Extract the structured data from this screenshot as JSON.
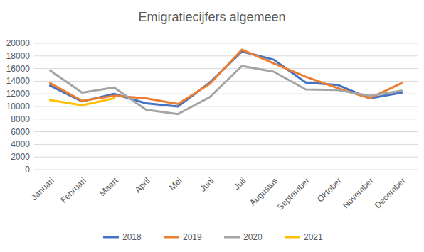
{
  "chart_data": {
    "type": "line",
    "title": "Emigratiecijfers algemeen",
    "categories": [
      "Januari",
      "Februari",
      "Maart",
      "April",
      "Mei",
      "Juni",
      "Juli",
      "Augustus",
      "September",
      "Oktober",
      "November",
      "December"
    ],
    "series": [
      {
        "name": "2018",
        "color": "#4472c4",
        "values": [
          13300,
          10800,
          12000,
          10500,
          10000,
          13800,
          18700,
          17400,
          13800,
          13400,
          11300,
          12200
        ]
      },
      {
        "name": "2019",
        "color": "#ed7d31",
        "values": [
          13700,
          10900,
          11700,
          11300,
          10400,
          13600,
          19000,
          16800,
          14700,
          12900,
          11300,
          13700
        ]
      },
      {
        "name": "2020",
        "color": "#a5a5a5",
        "values": [
          15700,
          12200,
          13000,
          9500,
          8800,
          11500,
          16400,
          15500,
          12700,
          12600,
          11700,
          12500
        ]
      },
      {
        "name": "2021",
        "color": "#ffc000",
        "values": [
          11000,
          10200,
          11300,
          null,
          null,
          null,
          null,
          null,
          null,
          null,
          null,
          null
        ]
      }
    ],
    "ylim": [
      0,
      20000
    ],
    "yticks": [
      0,
      2000,
      4000,
      6000,
      8000,
      10000,
      12000,
      14000,
      16000,
      18000,
      20000
    ],
    "grid": true,
    "legend": "bottom"
  }
}
